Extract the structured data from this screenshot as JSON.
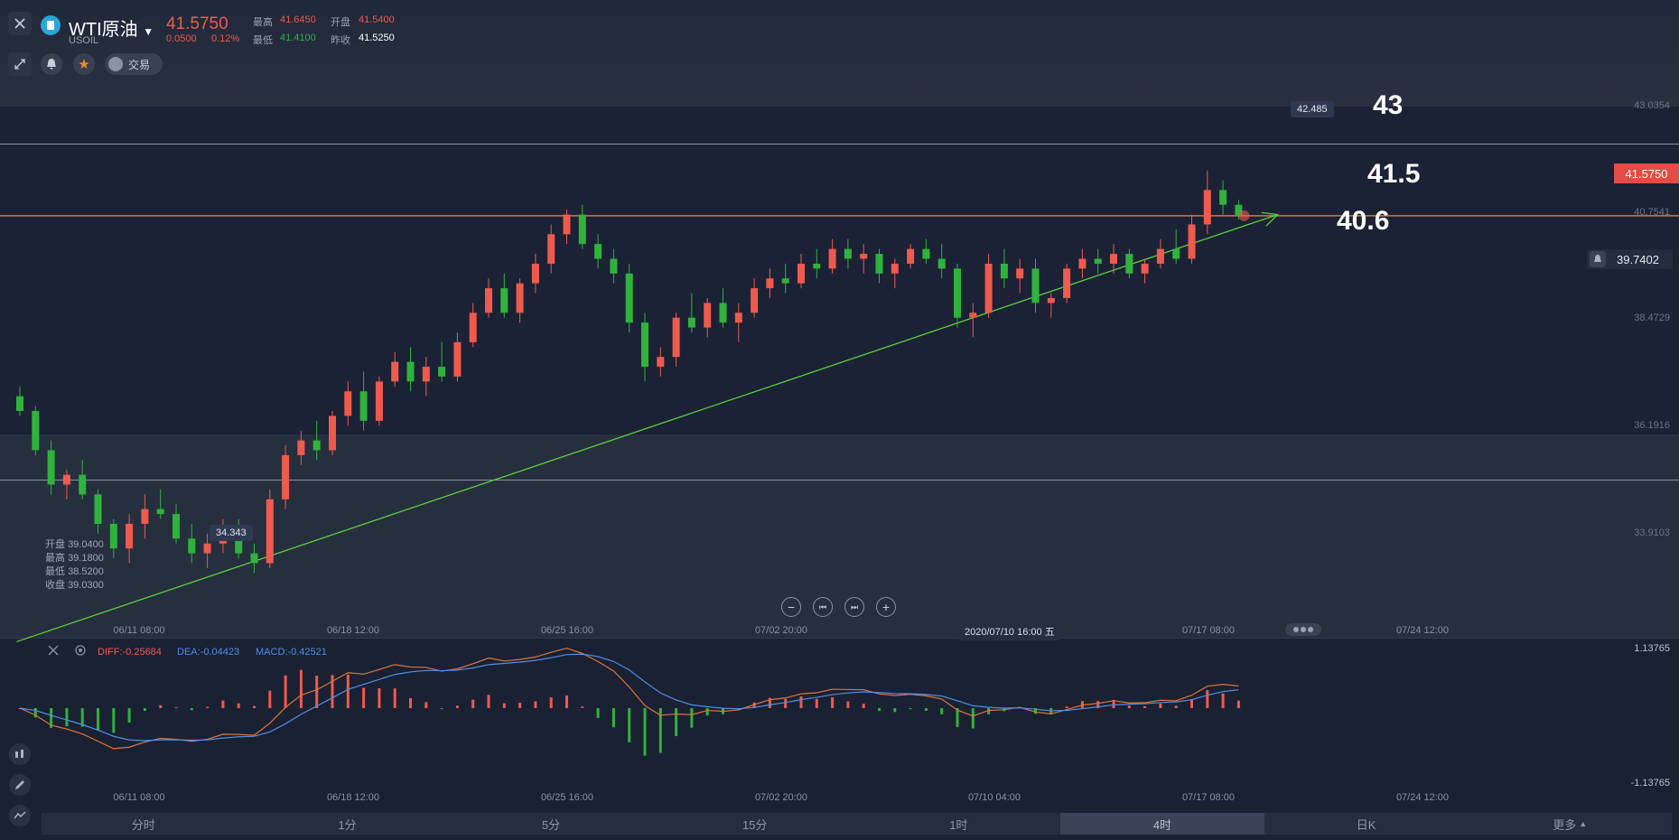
{
  "header": {
    "symbol_name": "WTI原油",
    "symbol_code": "USOIL",
    "last_price": "41.5750",
    "change": "0.0500",
    "change_pct": "0.12%",
    "stats": {
      "high_label": "最高",
      "high": "41.6450",
      "open_label": "开盘",
      "open": "41.5400",
      "low_label": "最低",
      "low": "41.4100",
      "prev_close_label": "昨收",
      "prev_close": "41.5250"
    },
    "trade_label": "交易"
  },
  "price_axis": [
    "43.0354",
    "40.7541",
    "38.4729",
    "36.1916",
    "33.9103"
  ],
  "current_price_tag": "41.5750",
  "alert_price": "39.7402",
  "annotations": {
    "level_high": "43",
    "level_mid": "41.5",
    "level_low": "40.6"
  },
  "tooltips": {
    "max": "42.485",
    "min": "34.343"
  },
  "ohlc_box": [
    {
      "label": "开盘",
      "value": "39.0400"
    },
    {
      "label": "最高",
      "value": "39.1800"
    },
    {
      "label": "最低",
      "value": "38.5200"
    },
    {
      "label": "收盘",
      "value": "39.0300"
    }
  ],
  "time_axis_main": [
    "06/11 08:00",
    "06/18 12:00",
    "06/25 16:00",
    "07/02 20:00",
    "07/17 08:00",
    "07/24 12:00"
  ],
  "crosshair_date": "2020/07/10 16:00 五",
  "nav_buttons": [
    "−",
    "⏮",
    "⏭",
    "+"
  ],
  "macd": {
    "diff_label": "DIFF:-0.25684",
    "dea_label": "DEA:-0.04423",
    "macd_label": "MACD:-0.42521",
    "axis_top": "1.13765",
    "axis_bottom": "-1.13765"
  },
  "time_axis_macd": [
    "06/11 08:00",
    "06/18 12:00",
    "06/25 16:00",
    "07/02 20:00",
    "07/10 04:00",
    "07/17 08:00",
    "07/24 12:00"
  ],
  "tabs": [
    "分时",
    "1分",
    "5分",
    "15分",
    "1时",
    "4时",
    "日K",
    "更多"
  ],
  "active_tab": "4时",
  "colors": {
    "up": "#ef5a4f",
    "down": "#2fb33c",
    "bg": "#1b2235",
    "orange_line": "#e0733b",
    "trend_line": "#5fcf3a"
  },
  "chart_data": {
    "type": "candlestick",
    "description_fields_only": false,
    "ylim": [
      33.0,
      43.8
    ],
    "candles": [
      [
        37.9,
        38.1,
        37.5,
        37.6
      ],
      [
        37.6,
        37.7,
        36.7,
        36.8
      ],
      [
        36.8,
        37.0,
        35.9,
        36.1
      ],
      [
        36.1,
        36.4,
        35.8,
        36.3
      ],
      [
        36.3,
        36.6,
        35.8,
        35.9
      ],
      [
        35.9,
        36.0,
        35.1,
        35.3
      ],
      [
        35.3,
        35.4,
        34.6,
        34.8
      ],
      [
        34.8,
        35.5,
        34.5,
        35.3
      ],
      [
        35.3,
        35.9,
        35.0,
        35.6
      ],
      [
        35.6,
        36.0,
        35.4,
        35.5
      ],
      [
        35.5,
        35.7,
        34.9,
        35.0
      ],
      [
        35.0,
        35.3,
        34.5,
        34.7
      ],
      [
        34.7,
        35.1,
        34.4,
        34.9
      ],
      [
        34.9,
        35.4,
        34.7,
        35.2
      ],
      [
        35.2,
        35.4,
        34.6,
        34.7
      ],
      [
        34.7,
        34.9,
        34.3,
        34.5
      ],
      [
        34.5,
        36.0,
        34.4,
        35.8
      ],
      [
        35.8,
        36.9,
        35.6,
        36.7
      ],
      [
        36.7,
        37.2,
        36.5,
        37.0
      ],
      [
        37.0,
        37.4,
        36.6,
        36.8
      ],
      [
        36.8,
        37.6,
        36.7,
        37.5
      ],
      [
        37.5,
        38.2,
        37.3,
        38.0
      ],
      [
        38.0,
        38.4,
        37.2,
        37.4
      ],
      [
        37.4,
        38.3,
        37.3,
        38.2
      ],
      [
        38.2,
        38.8,
        38.1,
        38.6
      ],
      [
        38.6,
        38.9,
        38.0,
        38.2
      ],
      [
        38.2,
        38.7,
        37.9,
        38.5
      ],
      [
        38.5,
        39.0,
        38.2,
        38.3
      ],
      [
        38.3,
        39.2,
        38.2,
        39.0
      ],
      [
        39.0,
        39.8,
        38.9,
        39.6
      ],
      [
        39.6,
        40.3,
        39.5,
        40.1
      ],
      [
        40.1,
        40.4,
        39.5,
        39.6
      ],
      [
        39.6,
        40.3,
        39.4,
        40.2
      ],
      [
        40.2,
        40.8,
        40.0,
        40.6
      ],
      [
        40.6,
        41.4,
        40.4,
        41.2
      ],
      [
        41.2,
        41.7,
        41.0,
        41.6
      ],
      [
        41.6,
        41.8,
        40.9,
        41.0
      ],
      [
        41.0,
        41.2,
        40.5,
        40.7
      ],
      [
        40.7,
        40.9,
        40.2,
        40.4
      ],
      [
        40.4,
        40.6,
        39.2,
        39.4
      ],
      [
        39.4,
        39.6,
        38.2,
        38.5
      ],
      [
        38.5,
        38.9,
        38.3,
        38.7
      ],
      [
        38.7,
        39.6,
        38.5,
        39.5
      ],
      [
        39.5,
        40.0,
        39.2,
        39.3
      ],
      [
        39.3,
        39.9,
        39.1,
        39.8
      ],
      [
        39.8,
        40.1,
        39.3,
        39.4
      ],
      [
        39.4,
        39.8,
        39.0,
        39.6
      ],
      [
        39.6,
        40.3,
        39.5,
        40.1
      ],
      [
        40.1,
        40.5,
        39.9,
        40.3
      ],
      [
        40.3,
        40.6,
        40.0,
        40.2
      ],
      [
        40.2,
        40.8,
        40.1,
        40.6
      ],
      [
        40.6,
        40.9,
        40.3,
        40.5
      ],
      [
        40.5,
        41.1,
        40.4,
        40.9
      ],
      [
        40.9,
        41.1,
        40.5,
        40.7
      ],
      [
        40.7,
        41.0,
        40.4,
        40.8
      ],
      [
        40.8,
        40.9,
        40.2,
        40.4
      ],
      [
        40.4,
        40.7,
        40.1,
        40.6
      ],
      [
        40.6,
        41.0,
        40.5,
        40.9
      ],
      [
        40.9,
        41.1,
        40.6,
        40.7
      ],
      [
        40.7,
        41.0,
        40.3,
        40.5
      ],
      [
        40.5,
        40.6,
        39.3,
        39.5
      ],
      [
        39.5,
        39.8,
        39.1,
        39.6
      ],
      [
        39.6,
        40.8,
        39.5,
        40.6
      ],
      [
        40.6,
        40.9,
        40.1,
        40.3
      ],
      [
        40.3,
        40.7,
        40.0,
        40.5
      ],
      [
        40.5,
        40.7,
        39.6,
        39.8
      ],
      [
        39.8,
        40.0,
        39.5,
        39.9
      ],
      [
        39.9,
        40.6,
        39.8,
        40.5
      ],
      [
        40.5,
        40.9,
        40.3,
        40.7
      ],
      [
        40.7,
        40.9,
        40.4,
        40.6
      ],
      [
        40.6,
        41.0,
        40.4,
        40.8
      ],
      [
        40.8,
        40.9,
        40.3,
        40.4
      ],
      [
        40.4,
        40.7,
        40.2,
        40.6
      ],
      [
        40.6,
        41.1,
        40.5,
        40.9
      ],
      [
        40.9,
        41.3,
        40.6,
        40.7
      ],
      [
        40.7,
        41.6,
        40.6,
        41.4
      ],
      [
        41.4,
        42.5,
        41.2,
        42.1
      ],
      [
        42.1,
        42.3,
        41.6,
        41.8
      ],
      [
        41.8,
        41.9,
        41.5,
        41.58
      ]
    ],
    "trendline": {
      "from": [
        -0.2,
        32.9
      ],
      "to": [
        80.5,
        41.6
      ]
    },
    "levels": [
      43.0354,
      41.575,
      36.1916
    ]
  }
}
